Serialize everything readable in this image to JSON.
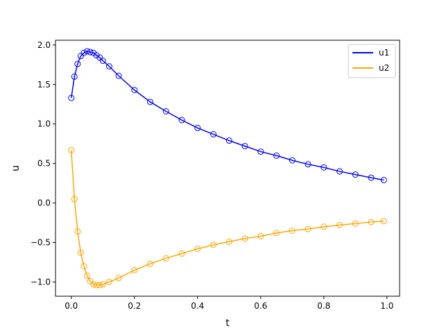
{
  "chart_data": {
    "type": "line",
    "xlabel": "t",
    "ylabel": "u",
    "xlim": [
      -0.05,
      1.04
    ],
    "ylim": [
      -1.18,
      2.06
    ],
    "xticks": [
      "0.0",
      "0.2",
      "0.4",
      "0.6",
      "0.8",
      "1.0"
    ],
    "yticks": [
      "-1.0",
      "-0.5",
      "0.0",
      "0.5",
      "1.0",
      "1.5",
      "2.0"
    ],
    "grid": false,
    "legend": "top-right",
    "markers": "open circles on every point",
    "series": [
      {
        "name": "u1",
        "color": "#0000ff",
        "points": [
          [
            0.0,
            1.33
          ],
          [
            0.01,
            1.6
          ],
          [
            0.02,
            1.76
          ],
          [
            0.03,
            1.86
          ],
          [
            0.04,
            1.9
          ],
          [
            0.05,
            1.92
          ],
          [
            0.06,
            1.91
          ],
          [
            0.07,
            1.9
          ],
          [
            0.08,
            1.87
          ],
          [
            0.09,
            1.84
          ],
          [
            0.1,
            1.8
          ],
          [
            0.12,
            1.73
          ],
          [
            0.15,
            1.61
          ],
          [
            0.2,
            1.43
          ],
          [
            0.25,
            1.28
          ],
          [
            0.3,
            1.16
          ],
          [
            0.35,
            1.05
          ],
          [
            0.4,
            0.95
          ],
          [
            0.45,
            0.87
          ],
          [
            0.5,
            0.79
          ],
          [
            0.55,
            0.72
          ],
          [
            0.6,
            0.65
          ],
          [
            0.65,
            0.6
          ],
          [
            0.7,
            0.54
          ],
          [
            0.75,
            0.49
          ],
          [
            0.8,
            0.45
          ],
          [
            0.85,
            0.4
          ],
          [
            0.9,
            0.36
          ],
          [
            0.95,
            0.32
          ],
          [
            0.99,
            0.29
          ]
        ]
      },
      {
        "name": "u2",
        "color": "#ffa500",
        "points": [
          [
            0.0,
            0.67
          ],
          [
            0.01,
            0.05
          ],
          [
            0.02,
            -0.36
          ],
          [
            0.03,
            -0.63
          ],
          [
            0.04,
            -0.8
          ],
          [
            0.05,
            -0.92
          ],
          [
            0.06,
            -0.99
          ],
          [
            0.07,
            -1.03
          ],
          [
            0.08,
            -1.04
          ],
          [
            0.09,
            -1.04
          ],
          [
            0.1,
            -1.03
          ],
          [
            0.12,
            -1.0
          ],
          [
            0.15,
            -0.95
          ],
          [
            0.2,
            -0.85
          ],
          [
            0.25,
            -0.77
          ],
          [
            0.3,
            -0.7
          ],
          [
            0.35,
            -0.64
          ],
          [
            0.4,
            -0.58
          ],
          [
            0.45,
            -0.53
          ],
          [
            0.5,
            -0.49
          ],
          [
            0.55,
            -0.45
          ],
          [
            0.6,
            -0.42
          ],
          [
            0.65,
            -0.38
          ],
          [
            0.7,
            -0.35
          ],
          [
            0.75,
            -0.33
          ],
          [
            0.8,
            -0.3
          ],
          [
            0.85,
            -0.28
          ],
          [
            0.9,
            -0.26
          ],
          [
            0.95,
            -0.24
          ],
          [
            0.99,
            -0.23
          ]
        ]
      }
    ]
  }
}
